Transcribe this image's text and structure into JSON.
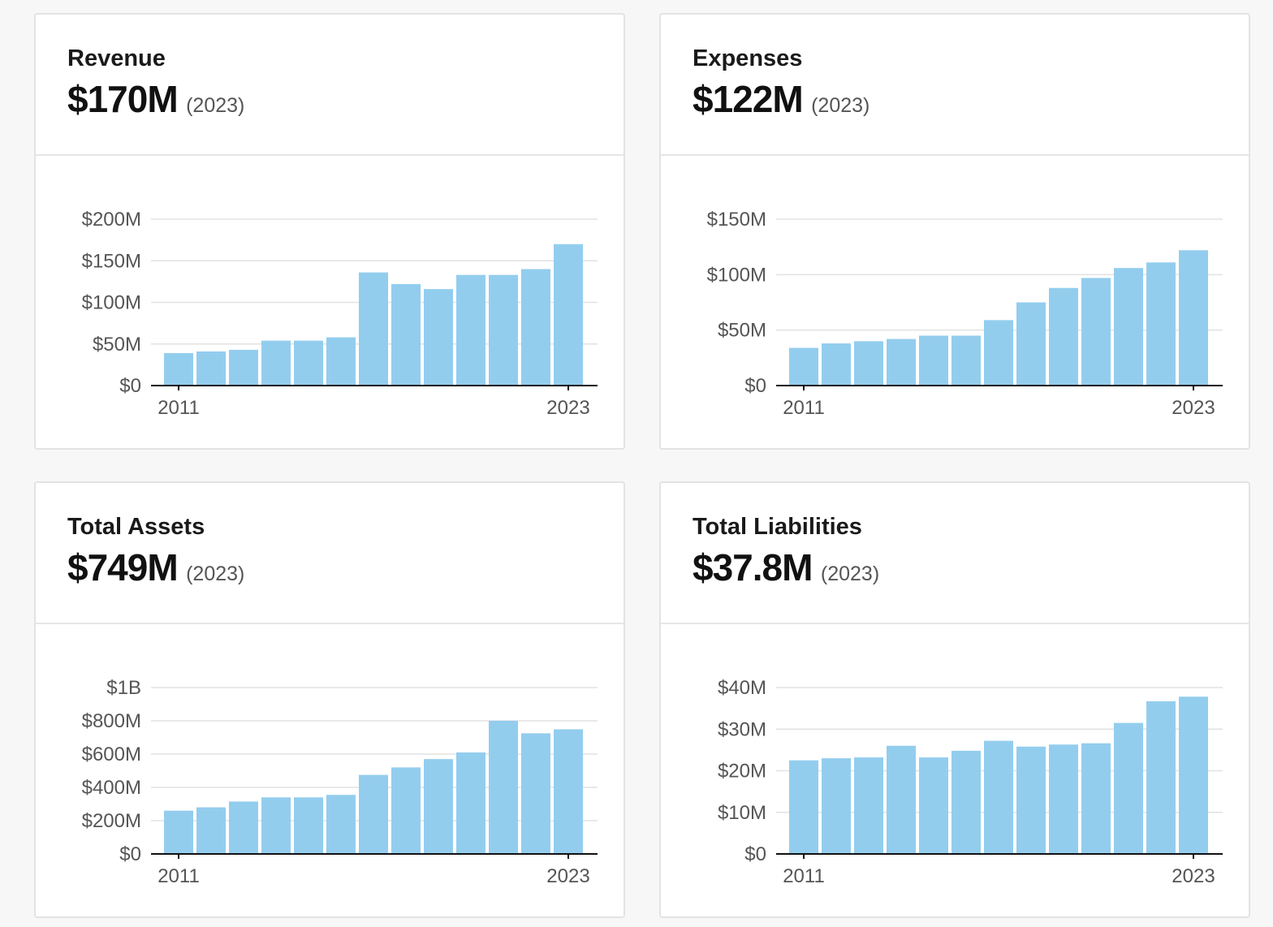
{
  "colors": {
    "bar": "#93cdee",
    "grid": "#e2e2e2",
    "axis": "#111111",
    "tick_text": "#555555",
    "card_border": "#e3e3e3",
    "background": "#f7f7f7"
  },
  "cards": [
    {
      "title": "Revenue",
      "value": "$170M",
      "year": "(2023)",
      "chart_data": {
        "type": "bar",
        "title": "",
        "xlabel": "",
        "ylabel": "",
        "categories": [
          "2011",
          "2012",
          "2013",
          "2014",
          "2015",
          "2016",
          "2017",
          "2018",
          "2019",
          "2020",
          "2021",
          "2022",
          "2023"
        ],
        "x_tick_labels": [
          "2011",
          "2023"
        ],
        "values": [
          39,
          41,
          43,
          54,
          54,
          58,
          136,
          122,
          116,
          133,
          133,
          140,
          170
        ],
        "unit": "$M",
        "ylim": [
          0,
          200
        ],
        "y_ticks": [
          0,
          50,
          100,
          150,
          200
        ],
        "y_tick_labels": [
          "$0",
          "$50M",
          "$100M",
          "$150M",
          "$200M"
        ],
        "grid": true
      }
    },
    {
      "title": "Expenses",
      "value": "$122M",
      "year": "(2023)",
      "chart_data": {
        "type": "bar",
        "title": "",
        "xlabel": "",
        "ylabel": "",
        "categories": [
          "2011",
          "2012",
          "2013",
          "2014",
          "2015",
          "2016",
          "2017",
          "2018",
          "2019",
          "2020",
          "2021",
          "2022",
          "2023"
        ],
        "x_tick_labels": [
          "2011",
          "2023"
        ],
        "values": [
          34,
          38,
          40,
          42,
          45,
          45,
          59,
          75,
          88,
          97,
          106,
          111,
          122
        ],
        "unit": "$M",
        "ylim": [
          0,
          150
        ],
        "y_ticks": [
          0,
          50,
          100,
          150
        ],
        "y_tick_labels": [
          "$0",
          "$50M",
          "$100M",
          "$150M"
        ],
        "grid": true
      }
    },
    {
      "title": "Total Assets",
      "value": "$749M",
      "year": "(2023)",
      "chart_data": {
        "type": "bar",
        "title": "",
        "xlabel": "",
        "ylabel": "",
        "categories": [
          "2011",
          "2012",
          "2013",
          "2014",
          "2015",
          "2016",
          "2017",
          "2018",
          "2019",
          "2020",
          "2021",
          "2022",
          "2023"
        ],
        "x_tick_labels": [
          "2011",
          "2023"
        ],
        "values": [
          260,
          280,
          315,
          340,
          340,
          355,
          475,
          520,
          570,
          610,
          800,
          725,
          749
        ],
        "unit": "$M",
        "ylim": [
          0,
          1000
        ],
        "y_ticks": [
          0,
          200,
          400,
          600,
          800,
          1000
        ],
        "y_tick_labels": [
          "$0",
          "$200M",
          "$400M",
          "$600M",
          "$800M",
          "$1B"
        ],
        "grid": true
      }
    },
    {
      "title": "Total Liabilities",
      "value": "$37.8M",
      "year": "(2023)",
      "chart_data": {
        "type": "bar",
        "title": "",
        "xlabel": "",
        "ylabel": "",
        "categories": [
          "2011",
          "2012",
          "2013",
          "2014",
          "2015",
          "2016",
          "2017",
          "2018",
          "2019",
          "2020",
          "2021",
          "2022",
          "2023"
        ],
        "x_tick_labels": [
          "2011",
          "2023"
        ],
        "values": [
          22.5,
          23,
          23.2,
          26,
          23.2,
          24.8,
          27.2,
          25.8,
          26.3,
          26.6,
          31.5,
          36.7,
          37.8
        ],
        "unit": "$M",
        "ylim": [
          0,
          40
        ],
        "y_ticks": [
          0,
          10,
          20,
          30,
          40
        ],
        "y_tick_labels": [
          "$0",
          "$10M",
          "$20M",
          "$30M",
          "$40M"
        ],
        "grid": true
      }
    }
  ]
}
